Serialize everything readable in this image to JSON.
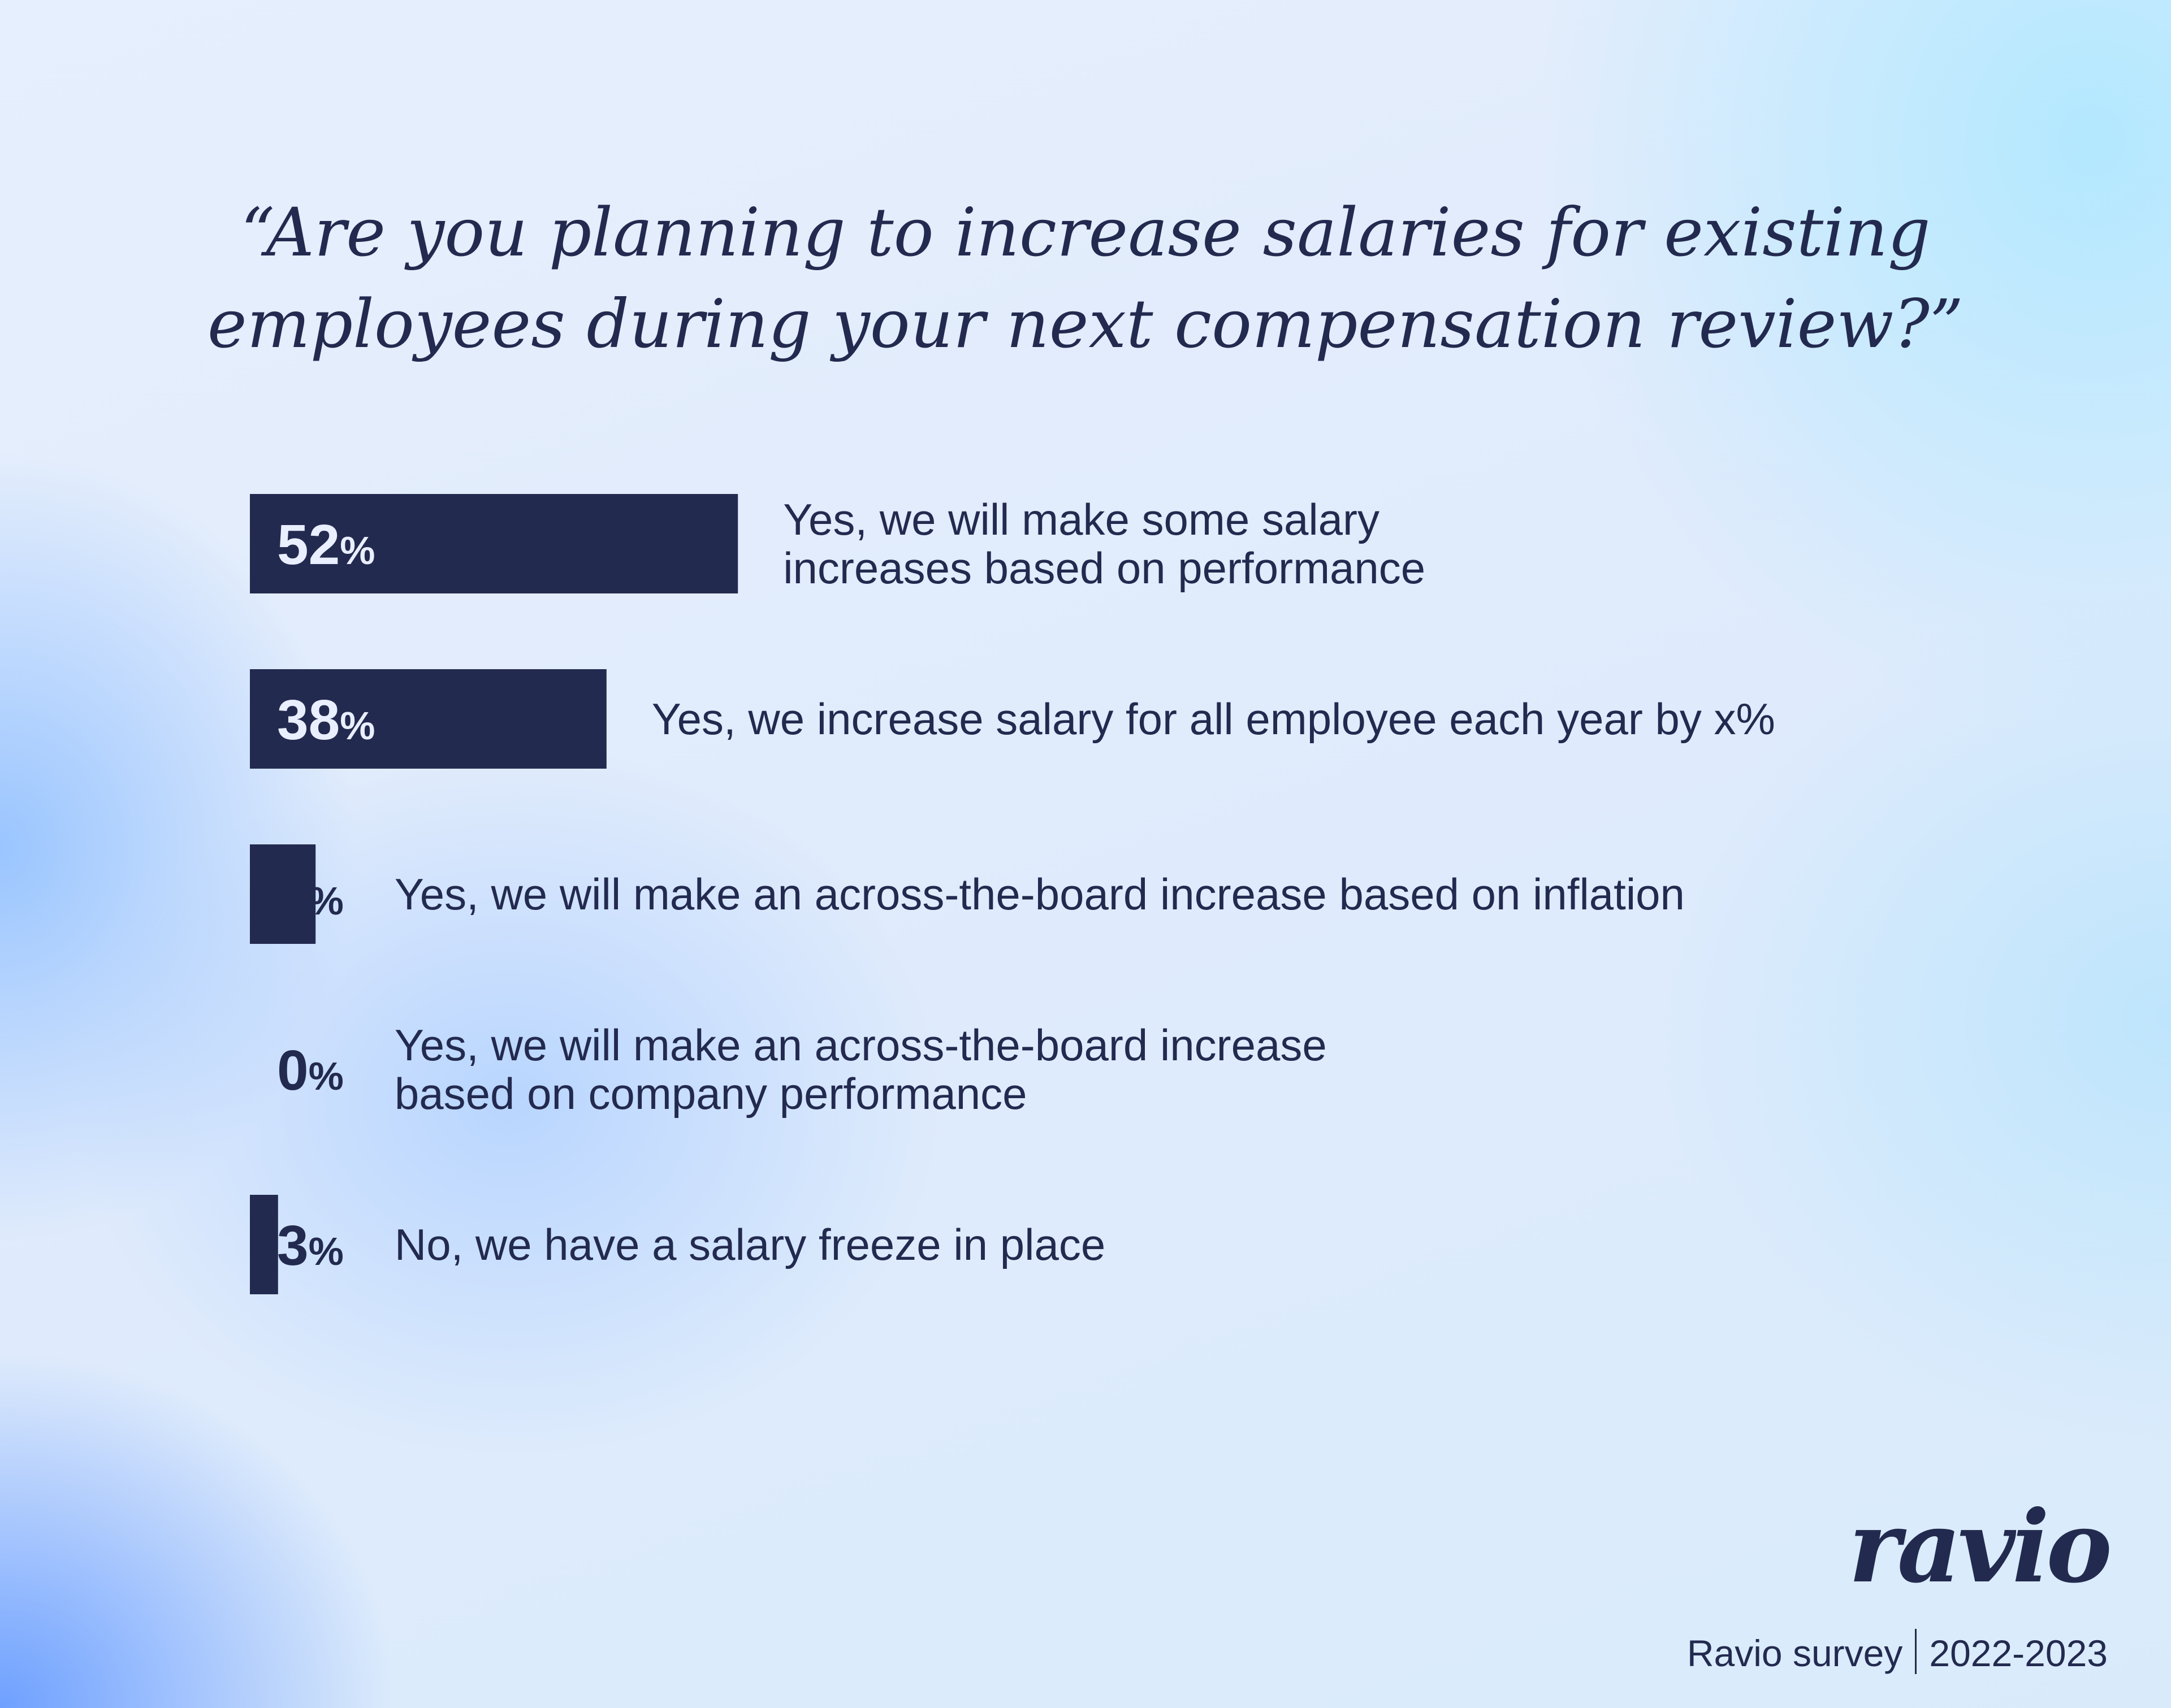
{
  "title": {
    "line1": "“Are you planning to increase salaries for existing",
    "line2": "employees during your next compensation review?”"
  },
  "chart_data": {
    "type": "bar",
    "orientation": "horizontal",
    "percent_sign": "%",
    "categories": [
      [
        "Yes, we will make some salary",
        "increases based on performance"
      ],
      [
        "Yes, we increase salary for all employee each year by x%"
      ],
      [
        "Yes, we will make an across-the-board increase based on inflation"
      ],
      [
        "Yes, we will make an across-the-board increase",
        "based on company performance"
      ],
      [
        "No, we have a salary freeze in place"
      ]
    ],
    "values": [
      52,
      38,
      7,
      0,
      3
    ],
    "value_labels": [
      "52",
      "38",
      "7",
      "0",
      "3"
    ],
    "bar_color": "#232a4f",
    "xlim": [
      0,
      100
    ],
    "grid": false,
    "legend": "none"
  },
  "brand": {
    "logo": "ravio",
    "survey_label": "Ravio survey",
    "years": "2022-2023"
  },
  "colors": {
    "text": "#232a4f",
    "background": "#e0ebfc",
    "accent_light": "#b0e8ff",
    "accent_blue": "#6ea0ff"
  }
}
